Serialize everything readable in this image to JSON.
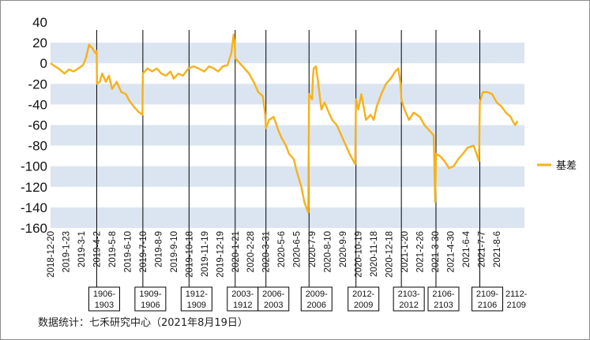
{
  "chart_data": {
    "type": "line",
    "title": "",
    "xlabel": "",
    "ylabel": "",
    "ylim": [
      -160,
      40
    ],
    "yticks": [
      40,
      20,
      0,
      -20,
      -40,
      -60,
      -80,
      -100,
      -120,
      -140,
      -160
    ],
    "grid": "horizontal bands",
    "legend_position": "right",
    "x_tick_labels": [
      "2018-12-20",
      "2019-1-23",
      "2019-3-1",
      "2019-4-2",
      "2019-5-8",
      "2019-6-10",
      "2019-7-10",
      "2019-8-9",
      "2019-9-10",
      "2019-10-18",
      "2019-11-19",
      "2019-12-19",
      "2020-1-21",
      "2020-2-28",
      "2020-3-31",
      "2020-5-6",
      "2020-6-5",
      "2020-7-9",
      "2020-8-10",
      "2020-9-9",
      "2020-10-19",
      "2020-11-18",
      "2020-12-18",
      "2021-1-20",
      "2021-2-26",
      "2021-3-30",
      "2021-4-30",
      "2021-6-4",
      "2021-7-7",
      "2021-8-6"
    ],
    "series": [
      {
        "name": "基差",
        "color": "#f5b21a",
        "points": [
          [
            0,
            0
          ],
          [
            0.3,
            -3
          ],
          [
            0.6,
            -6
          ],
          [
            0.9,
            -10
          ],
          [
            1.2,
            -6
          ],
          [
            1.5,
            -8
          ],
          [
            1.8,
            -5
          ],
          [
            2.1,
            -2
          ],
          [
            2.3,
            5
          ],
          [
            2.5,
            18
          ],
          [
            2.7,
            15
          ],
          [
            2.9,
            10
          ],
          [
            3.0,
            12
          ],
          [
            3.02,
            -20
          ],
          [
            3.2,
            -18
          ],
          [
            3.35,
            -10
          ],
          [
            3.6,
            -18
          ],
          [
            3.8,
            -12
          ],
          [
            4.0,
            -25
          ],
          [
            4.3,
            -18
          ],
          [
            4.6,
            -28
          ],
          [
            4.9,
            -30
          ],
          [
            5.1,
            -36
          ],
          [
            5.4,
            -42
          ],
          [
            5.7,
            -47
          ],
          [
            5.97,
            -50
          ],
          [
            6.0,
            -10
          ],
          [
            6.3,
            -5
          ],
          [
            6.6,
            -8
          ],
          [
            6.9,
            -5
          ],
          [
            7.2,
            -10
          ],
          [
            7.5,
            -12
          ],
          [
            7.8,
            -8
          ],
          [
            8.0,
            -15
          ],
          [
            8.3,
            -10
          ],
          [
            8.6,
            -12
          ],
          [
            8.97,
            -5
          ],
          [
            9.0,
            -5
          ],
          [
            9.3,
            -3
          ],
          [
            9.6,
            -5
          ],
          [
            10.0,
            -8
          ],
          [
            10.3,
            -3
          ],
          [
            10.6,
            -5
          ],
          [
            10.9,
            -8
          ],
          [
            11.2,
            -3
          ],
          [
            11.5,
            -2
          ],
          [
            11.75,
            10
          ],
          [
            11.9,
            28
          ],
          [
            11.97,
            20
          ],
          [
            12.0,
            5
          ],
          [
            12.3,
            0
          ],
          [
            12.6,
            -5
          ],
          [
            12.9,
            -10
          ],
          [
            13.2,
            -18
          ],
          [
            13.5,
            -28
          ],
          [
            13.8,
            -32
          ],
          [
            13.95,
            -50
          ],
          [
            14.0,
            -63
          ],
          [
            14.2,
            -55
          ],
          [
            14.5,
            -52
          ],
          [
            14.8,
            -65
          ],
          [
            15.0,
            -72
          ],
          [
            15.3,
            -80
          ],
          [
            15.5,
            -88
          ],
          [
            15.8,
            -93
          ],
          [
            16.0,
            -105
          ],
          [
            16.3,
            -120
          ],
          [
            16.5,
            -135
          ],
          [
            16.75,
            -145
          ],
          [
            16.8,
            -30
          ],
          [
            17.0,
            -35
          ],
          [
            17.05,
            -15
          ],
          [
            17.1,
            -5
          ],
          [
            17.25,
            -3
          ],
          [
            17.4,
            -20
          ],
          [
            17.6,
            -45
          ],
          [
            17.8,
            -38
          ],
          [
            18.0,
            -45
          ],
          [
            18.3,
            -55
          ],
          [
            18.6,
            -60
          ],
          [
            18.9,
            -70
          ],
          [
            19.2,
            -80
          ],
          [
            19.5,
            -90
          ],
          [
            19.8,
            -98
          ],
          [
            19.85,
            -35
          ],
          [
            20.0,
            -45
          ],
          [
            20.2,
            -30
          ],
          [
            20.5,
            -55
          ],
          [
            20.8,
            -50
          ],
          [
            21.0,
            -55
          ],
          [
            21.2,
            -42
          ],
          [
            21.5,
            -30
          ],
          [
            21.8,
            -20
          ],
          [
            22.1,
            -15
          ],
          [
            22.4,
            -8
          ],
          [
            22.6,
            -5
          ],
          [
            22.75,
            -20
          ],
          [
            22.8,
            -35
          ],
          [
            23.0,
            -45
          ],
          [
            23.3,
            -55
          ],
          [
            23.6,
            -48
          ],
          [
            24.0,
            -52
          ],
          [
            24.3,
            -60
          ],
          [
            24.6,
            -65
          ],
          [
            24.9,
            -70
          ],
          [
            25.0,
            -135
          ],
          [
            25.05,
            -88
          ],
          [
            25.3,
            -90
          ],
          [
            25.6,
            -95
          ],
          [
            25.9,
            -102
          ],
          [
            26.2,
            -100
          ],
          [
            26.5,
            -93
          ],
          [
            26.8,
            -88
          ],
          [
            27.1,
            -82
          ],
          [
            27.5,
            -80
          ],
          [
            27.85,
            -95
          ],
          [
            27.9,
            -38
          ],
          [
            28.1,
            -28
          ],
          [
            28.4,
            -28
          ],
          [
            28.7,
            -30
          ],
          [
            29.0,
            -38
          ],
          [
            29.3,
            -42
          ],
          [
            29.6,
            -48
          ],
          [
            29.9,
            -52
          ],
          [
            30.1,
            -58
          ],
          [
            30.2,
            -60
          ],
          [
            30.35,
            -56
          ]
        ]
      }
    ],
    "contract_switch_markers": [
      {
        "x": 3.0,
        "label": "1906-\n1903"
      },
      {
        "x": 6.0,
        "label": "1909-\n1906"
      },
      {
        "x": 9.0,
        "label": "1912-\n1909"
      },
      {
        "x": 12.0,
        "label": "2003-\n1912"
      },
      {
        "x": 14.0,
        "label": "2006-\n2003"
      },
      {
        "x": 16.8,
        "label": "2009-\n2006"
      },
      {
        "x": 19.85,
        "label": "2012-\n2009"
      },
      {
        "x": 22.8,
        "label": "2103-\n2012"
      },
      {
        "x": 25.05,
        "label": "2106-\n2103"
      },
      {
        "x": 27.9,
        "label": "2109-\n2106"
      },
      {
        "x": 30.4,
        "label": "2112-\n2109"
      }
    ]
  },
  "legend": {
    "label": "基差",
    "color": "#f5b21a"
  },
  "source": "数据统计：七禾研究中心（2021年8月19日）",
  "colors": {
    "band": "#dbe5f1",
    "line": "#f5b21a",
    "divider": "#000000"
  }
}
